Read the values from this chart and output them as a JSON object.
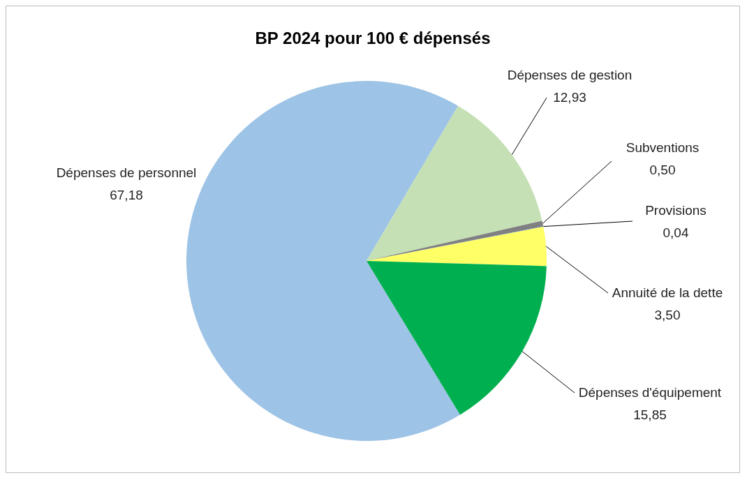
{
  "chart_data": {
    "type": "pie",
    "title": "BP 2024 pour 100 € dépensés",
    "categories": [
      "Dépenses de personnel",
      "Dépenses de gestion",
      "Subventions",
      "Provisions",
      "Annuité de la dette",
      "Dépenses d'équipement"
    ],
    "values": [
      67.18,
      12.93,
      0.5,
      0.04,
      3.5,
      15.85
    ],
    "value_labels": [
      "67,18",
      "12,93",
      "0,50",
      "0,04",
      "3,50",
      "15,85"
    ],
    "colors": [
      "#9dc3e6",
      "#c5e0b4",
      "#808080",
      "#4472c4",
      "#ffff66",
      "#00b050"
    ],
    "legend": false
  }
}
